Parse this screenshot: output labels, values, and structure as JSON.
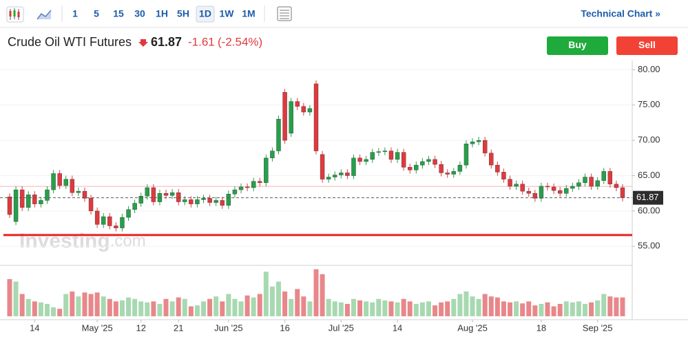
{
  "toolbar": {
    "intervals": [
      "1",
      "5",
      "15",
      "30",
      "1H",
      "5H",
      "1D",
      "1W",
      "1M"
    ],
    "selected": "1D",
    "link": "Technical Chart »"
  },
  "header": {
    "title": "Crude Oil WTI Futures",
    "change": "-1.61",
    "change_percent": "(-2.54%)",
    "buy": "Buy",
    "sell": "Sell"
  },
  "watermark": [
    "Investing",
    ".com"
  ],
  "chart_data": {
    "type": "candlestick",
    "up_color": "#26a04a",
    "down_color": "#e0393e",
    "up_volume_color": "#a7d9b0",
    "down_volume_color": "#e8878a",
    "grid": true,
    "ylim": [
      52.4,
      81.3
    ],
    "yticks": [
      {
        "value": 55,
        "label": "55.00"
      },
      {
        "value": 60,
        "label": "60.00"
      },
      {
        "value": 65,
        "label": "65.00"
      },
      {
        "value": 70,
        "label": "70.00"
      },
      {
        "value": 75,
        "label": "75.00"
      },
      {
        "value": 80,
        "label": "80.00"
      }
    ],
    "volume_lim": [
      0,
      100
    ],
    "last_price": 61.87,
    "previous_close": 63.48,
    "trend_line": 56.6,
    "categories": [
      null,
      null,
      null,
      null,
      "14",
      null,
      null,
      null,
      null,
      null,
      null,
      null,
      null,
      null,
      "May '25",
      null,
      null,
      null,
      null,
      null,
      null,
      "12",
      null,
      null,
      null,
      null,
      null,
      "21",
      null,
      null,
      null,
      null,
      null,
      null,
      null,
      "Jun '25",
      null,
      null,
      null,
      null,
      null,
      null,
      null,
      null,
      "16",
      null,
      null,
      null,
      null,
      null,
      null,
      null,
      null,
      "Jul '25",
      null,
      null,
      null,
      null,
      null,
      null,
      null,
      null,
      "14",
      null,
      null,
      null,
      null,
      null,
      null,
      null,
      null,
      null,
      null,
      null,
      "Aug '25",
      null,
      null,
      null,
      null,
      null,
      null,
      null,
      null,
      null,
      null,
      "18",
      null,
      null,
      null,
      null,
      null,
      null,
      null,
      null,
      "Sep '25",
      null,
      null,
      null,
      null
    ],
    "open": [
      62.0,
      58.5,
      63.0,
      60.5,
      62.3,
      61.0,
      61.5,
      63.0,
      65.3,
      63.6,
      64.5,
      62.6,
      62.8,
      61.8,
      60.0,
      58.1,
      59.2,
      57.9,
      57.6,
      59.1,
      60.2,
      61.1,
      62.1,
      63.3,
      61.3,
      62.5,
      62.2,
      62.6,
      61.3,
      61.6,
      61.0,
      61.6,
      61.8,
      61.2,
      61.5,
      60.8,
      62.4,
      63.0,
      63.4,
      63.3,
      64.2,
      64.0,
      67.5,
      68.5,
      76.8,
      71.0,
      75.5,
      74.8,
      74.0,
      78.0,
      68.0,
      64.5,
      64.8,
      65.1,
      65.4,
      65.0,
      67.5,
      67.0,
      67.3,
      68.3,
      68.4,
      68.5,
      67.3,
      68.3,
      66.2,
      65.8,
      66.5,
      67.0,
      67.3,
      66.6,
      65.4,
      65.2,
      65.6,
      66.5,
      69.5,
      69.8,
      70.0,
      68.2,
      66.5,
      65.5,
      64.5,
      63.5,
      63.8,
      62.8,
      62.5,
      61.8,
      63.5,
      63.4,
      62.9,
      62.5,
      63.2,
      63.5,
      64.0,
      64.8,
      63.5,
      64.3,
      65.6,
      63.8,
      63.3
    ],
    "high": [
      62.5,
      63.5,
      63.5,
      62.8,
      62.8,
      62.0,
      63.5,
      65.8,
      65.8,
      65.0,
      65.0,
      63.3,
      63.3,
      62.3,
      60.5,
      59.7,
      59.7,
      58.4,
      59.6,
      60.7,
      61.6,
      62.6,
      63.8,
      63.8,
      63.0,
      63.0,
      63.1,
      63.1,
      62.1,
      62.1,
      62.1,
      62.3,
      62.3,
      62.0,
      62.0,
      62.9,
      63.5,
      63.9,
      63.9,
      64.7,
      64.7,
      68.0,
      69.0,
      73.5,
      77.3,
      76.0,
      76.0,
      75.3,
      75.0,
      78.5,
      68.5,
      65.3,
      65.6,
      65.9,
      65.9,
      68.0,
      68.0,
      67.8,
      68.8,
      68.9,
      69.0,
      69.0,
      68.8,
      68.8,
      66.7,
      67.0,
      67.5,
      67.8,
      67.8,
      67.1,
      65.9,
      66.1,
      67.0,
      70.0,
      70.3,
      70.5,
      70.5,
      68.7,
      67.0,
      66.0,
      65.0,
      64.3,
      64.3,
      63.3,
      63.0,
      64.0,
      64.0,
      63.9,
      63.4,
      63.7,
      64.0,
      64.5,
      65.3,
      65.3,
      64.8,
      66.1,
      66.1,
      64.3,
      63.8
    ],
    "low": [
      59.0,
      58.0,
      60.0,
      60.0,
      60.5,
      60.5,
      61.0,
      62.5,
      63.1,
      63.1,
      62.1,
      62.1,
      61.3,
      59.5,
      57.6,
      57.6,
      57.4,
      57.1,
      57.1,
      58.6,
      59.7,
      60.6,
      61.6,
      60.8,
      60.8,
      61.7,
      61.7,
      60.8,
      60.8,
      60.5,
      60.5,
      61.1,
      60.7,
      60.7,
      60.3,
      60.3,
      61.9,
      62.5,
      62.8,
      62.8,
      63.5,
      63.5,
      67.0,
      68.0,
      69.5,
      70.5,
      74.3,
      73.5,
      73.5,
      68.0,
      64.0,
      64.0,
      64.3,
      64.6,
      64.5,
      64.5,
      66.5,
      66.5,
      66.8,
      67.8,
      67.9,
      66.8,
      66.8,
      65.7,
      65.3,
      65.3,
      66.0,
      66.5,
      66.1,
      64.9,
      64.7,
      64.7,
      65.1,
      66.0,
      69.0,
      69.3,
      67.7,
      66.0,
      65.0,
      64.0,
      63.0,
      63.0,
      62.3,
      62.0,
      61.3,
      61.3,
      62.9,
      62.4,
      62.0,
      62.0,
      62.7,
      63.0,
      63.5,
      63.0,
      63.0,
      63.8,
      63.3,
      62.8,
      61.37
    ],
    "close": [
      59.5,
      63.0,
      60.5,
      62.3,
      61.0,
      61.5,
      63.0,
      65.3,
      63.6,
      64.5,
      62.6,
      62.8,
      61.8,
      60.0,
      58.1,
      59.2,
      57.9,
      57.6,
      59.1,
      60.2,
      61.1,
      62.1,
      63.3,
      61.3,
      62.5,
      62.2,
      62.6,
      61.3,
      61.6,
      61.0,
      61.6,
      61.8,
      61.2,
      61.5,
      60.8,
      62.4,
      63.0,
      63.4,
      63.3,
      64.2,
      64.0,
      67.5,
      68.5,
      73.0,
      70.0,
      75.5,
      74.8,
      74.0,
      74.5,
      68.5,
      64.5,
      64.8,
      65.1,
      65.4,
      65.0,
      67.5,
      67.0,
      67.3,
      68.3,
      68.4,
      68.5,
      67.3,
      68.3,
      66.2,
      65.8,
      66.5,
      67.0,
      67.3,
      66.6,
      65.4,
      65.2,
      65.6,
      66.5,
      69.5,
      69.8,
      70.0,
      68.2,
      66.5,
      65.5,
      64.5,
      63.5,
      63.8,
      62.8,
      62.5,
      61.8,
      63.5,
      63.4,
      62.9,
      62.5,
      63.2,
      63.5,
      64.0,
      64.8,
      63.5,
      64.3,
      65.6,
      63.8,
      63.3,
      61.87
    ],
    "volume": [
      75,
      70,
      45,
      35,
      30,
      28,
      25,
      18,
      15,
      45,
      50,
      40,
      48,
      45,
      48,
      40,
      35,
      30,
      32,
      38,
      35,
      30,
      28,
      30,
      25,
      35,
      30,
      38,
      35,
      20,
      22,
      30,
      35,
      40,
      30,
      45,
      35,
      30,
      42,
      38,
      45,
      90,
      60,
      70,
      50,
      35,
      55,
      40,
      30,
      95,
      85,
      35,
      30,
      28,
      25,
      35,
      32,
      30,
      28,
      35,
      32,
      30,
      28,
      35,
      30,
      25,
      28,
      30,
      22,
      28,
      30,
      35,
      45,
      50,
      40,
      35,
      45,
      40,
      38,
      30,
      28,
      30,
      26,
      30,
      22,
      25,
      28,
      20,
      25,
      30,
      28,
      30,
      25,
      28,
      32,
      45,
      40,
      38,
      38
    ]
  }
}
